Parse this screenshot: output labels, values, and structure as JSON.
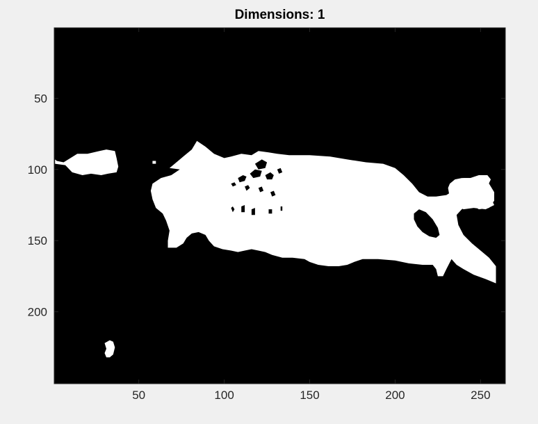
{
  "figure": {
    "title": "Dimensions: 1",
    "colors": {
      "background": "#f0f0f0",
      "axes_frame": "#262626",
      "image_background": "#000000",
      "mask_foreground": "#ffffff"
    }
  },
  "chart_data": {
    "type": "heatmap",
    "title": "Dimensions: 1",
    "description_of_content": "binary mask image",
    "xlim": [
      0.5,
      264.5
    ],
    "ylim": [
      0.5,
      250.5
    ],
    "y_direction": "reversed",
    "x_ticks": [
      50,
      100,
      150,
      200,
      250
    ],
    "y_ticks": [
      50,
      100,
      150,
      200
    ],
    "x_tick_labels": [
      "50",
      "100",
      "150",
      "200",
      "250"
    ],
    "y_tick_labels": [
      "50",
      "100",
      "150",
      "200"
    ],
    "grid": false,
    "colormap": [
      "#000000",
      "#ffffff"
    ],
    "regions": [
      {
        "name": "left-blob",
        "polygon": [
          [
            1,
            96
          ],
          [
            7,
            97
          ],
          [
            11,
            102
          ],
          [
            17,
            104
          ],
          [
            22,
            103
          ],
          [
            28,
            104
          ],
          [
            32,
            103
          ],
          [
            37,
            102
          ],
          [
            38,
            98
          ],
          [
            37,
            92
          ],
          [
            36,
            87
          ],
          [
            31,
            86
          ],
          [
            27,
            87
          ],
          [
            20,
            89
          ],
          [
            14,
            89
          ],
          [
            10,
            92
          ],
          [
            6,
            95
          ],
          [
            2,
            94
          ],
          [
            1,
            93
          ]
        ]
      },
      {
        "name": "small-speck",
        "polygon": [
          [
            58,
            94
          ],
          [
            60,
            94
          ],
          [
            60,
            96
          ],
          [
            58,
            96
          ]
        ]
      },
      {
        "name": "main-body",
        "polygon": [
          [
            70,
            97
          ],
          [
            76,
            91
          ],
          [
            81,
            86
          ],
          [
            84,
            80
          ],
          [
            89,
            84
          ],
          [
            94,
            89
          ],
          [
            100,
            92
          ],
          [
            104,
            91
          ],
          [
            110,
            89
          ],
          [
            116,
            90
          ],
          [
            120,
            87
          ],
          [
            126,
            88
          ],
          [
            131,
            89
          ],
          [
            138,
            90
          ],
          [
            150,
            90
          ],
          [
            162,
            91
          ],
          [
            172,
            93
          ],
          [
            183,
            95
          ],
          [
            193,
            96
          ],
          [
            200,
            99
          ],
          [
            205,
            104
          ],
          [
            210,
            110
          ],
          [
            214,
            116
          ],
          [
            219,
            119
          ],
          [
            224,
            119
          ],
          [
            230,
            118
          ],
          [
            234,
            115
          ],
          [
            236,
            109
          ],
          [
            240,
            106
          ],
          [
            245,
            106
          ],
          [
            250,
            104
          ],
          [
            254,
            105
          ],
          [
            255,
            110
          ],
          [
            258,
            116
          ],
          [
            258,
            122
          ],
          [
            255,
            127
          ],
          [
            249,
            128
          ],
          [
            244,
            124
          ],
          [
            239,
            128
          ],
          [
            236,
            132
          ],
          [
            237,
            139
          ],
          [
            240,
            146
          ],
          [
            245,
            152
          ],
          [
            250,
            157
          ],
          [
            255,
            162
          ],
          [
            259,
            168
          ],
          [
            259,
            180
          ],
          [
            253,
            177
          ],
          [
            246,
            174
          ],
          [
            240,
            170
          ],
          [
            236,
            167
          ],
          [
            233,
            163
          ],
          [
            230,
            170
          ],
          [
            228,
            175
          ],
          [
            225,
            175
          ],
          [
            224,
            170
          ],
          [
            222,
            167
          ],
          [
            216,
            167
          ],
          [
            208,
            166
          ],
          [
            200,
            164
          ],
          [
            190,
            163
          ],
          [
            181,
            163
          ],
          [
            176,
            165
          ],
          [
            172,
            167
          ],
          [
            167,
            168
          ],
          [
            161,
            168
          ],
          [
            155,
            167
          ],
          [
            150,
            165
          ],
          [
            147,
            163
          ],
          [
            140,
            162
          ],
          [
            134,
            162
          ],
          [
            128,
            160
          ],
          [
            124,
            158
          ],
          [
            120,
            157
          ],
          [
            116,
            156
          ],
          [
            112,
            157
          ],
          [
            108,
            158
          ],
          [
            104,
            157
          ],
          [
            99,
            156
          ],
          [
            94,
            154
          ],
          [
            91,
            150
          ],
          [
            89,
            146
          ],
          [
            85,
            144
          ],
          [
            81,
            145
          ],
          [
            78,
            148
          ],
          [
            76,
            152
          ],
          [
            72,
            155
          ],
          [
            67,
            155
          ],
          [
            67,
            150
          ],
          [
            68,
            143
          ],
          [
            66,
            136
          ],
          [
            64,
            131
          ],
          [
            60,
            127
          ],
          [
            58,
            121
          ],
          [
            57,
            115
          ],
          [
            58,
            110
          ],
          [
            63,
            106
          ],
          [
            69,
            104
          ],
          [
            74,
            100
          ],
          [
            68,
            99
          ]
        ]
      },
      {
        "name": "head-blob",
        "polygon": [
          [
            231,
            113
          ],
          [
            232,
            110
          ],
          [
            235,
            107
          ],
          [
            239,
            106
          ],
          [
            244,
            106
          ],
          [
            249,
            104
          ],
          [
            254,
            104
          ],
          [
            256,
            107
          ],
          [
            254,
            112
          ],
          [
            252,
            117
          ],
          [
            256,
            120
          ],
          [
            258,
            125
          ],
          [
            253,
            128
          ],
          [
            246,
            127
          ],
          [
            240,
            128
          ],
          [
            235,
            125
          ],
          [
            232,
            120
          ]
        ]
      },
      {
        "name": "bottom-speck",
        "polygon": [
          [
            30,
            222
          ],
          [
            33,
            220
          ],
          [
            35,
            221
          ],
          [
            36,
            225
          ],
          [
            35,
            230
          ],
          [
            33,
            232
          ],
          [
            31,
            232
          ],
          [
            30,
            229
          ],
          [
            31,
            226
          ]
        ]
      }
    ],
    "holes": [
      {
        "name": "oval-hole",
        "polygon": [
          [
            211,
            131
          ],
          [
            214,
            128
          ],
          [
            218,
            130
          ],
          [
            222,
            135
          ],
          [
            225,
            141
          ],
          [
            226,
            146
          ],
          [
            224,
            148
          ],
          [
            220,
            147
          ],
          [
            216,
            144
          ],
          [
            213,
            140
          ],
          [
            211,
            135
          ]
        ]
      },
      {
        "name": "speck-1",
        "polygon": [
          [
            108,
            106
          ],
          [
            111,
            104
          ],
          [
            113,
            105
          ],
          [
            112,
            108
          ],
          [
            109,
            109
          ]
        ]
      },
      {
        "name": "speck-2",
        "polygon": [
          [
            115,
            103
          ],
          [
            118,
            100
          ],
          [
            122,
            101
          ],
          [
            121,
            105
          ],
          [
            117,
            106
          ]
        ]
      },
      {
        "name": "speck-3",
        "polygon": [
          [
            118,
            96
          ],
          [
            122,
            93
          ],
          [
            125,
            95
          ],
          [
            124,
            99
          ],
          [
            120,
            100
          ]
        ]
      },
      {
        "name": "speck-4",
        "polygon": [
          [
            124,
            104
          ],
          [
            127,
            102
          ],
          [
            129,
            104
          ],
          [
            128,
            107
          ],
          [
            125,
            107
          ]
        ]
      },
      {
        "name": "speck-5",
        "polygon": [
          [
            112,
            112
          ],
          [
            114,
            111
          ],
          [
            115,
            113
          ],
          [
            113,
            115
          ]
        ]
      },
      {
        "name": "speck-6",
        "polygon": [
          [
            120,
            113
          ],
          [
            122,
            112
          ],
          [
            123,
            115
          ],
          [
            121,
            116
          ]
        ]
      },
      {
        "name": "speck-7",
        "polygon": [
          [
            127,
            116
          ],
          [
            129,
            115
          ],
          [
            130,
            118
          ],
          [
            128,
            119
          ]
        ]
      },
      {
        "name": "speck-8",
        "polygon": [
          [
            104,
            110
          ],
          [
            106,
            109
          ],
          [
            107,
            111
          ],
          [
            105,
            112
          ]
        ]
      },
      {
        "name": "speck-9",
        "polygon": [
          [
            131,
            100
          ],
          [
            133,
            99
          ],
          [
            134,
            102
          ],
          [
            132,
            103
          ]
        ]
      },
      {
        "name": "speck-10",
        "polygon": [
          [
            110,
            126
          ],
          [
            112,
            125
          ],
          [
            112,
            130
          ],
          [
            110,
            130
          ]
        ]
      },
      {
        "name": "speck-11",
        "polygon": [
          [
            116,
            128
          ],
          [
            118,
            127
          ],
          [
            118,
            132
          ],
          [
            116,
            132
          ]
        ]
      },
      {
        "name": "speck-12",
        "polygon": [
          [
            126,
            128
          ],
          [
            128,
            128
          ],
          [
            128,
            131
          ],
          [
            126,
            131
          ]
        ]
      },
      {
        "name": "speck-13",
        "polygon": [
          [
            104,
            127
          ],
          [
            105,
            126
          ],
          [
            106,
            128
          ],
          [
            105,
            130
          ]
        ]
      },
      {
        "name": "speck-14",
        "polygon": [
          [
            133,
            126
          ],
          [
            134,
            126
          ],
          [
            134,
            129
          ],
          [
            133,
            129
          ]
        ]
      }
    ]
  }
}
